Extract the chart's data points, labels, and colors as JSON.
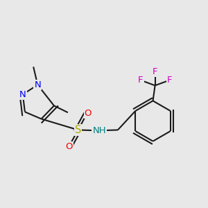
{
  "bg_color": "#e8e8e8",
  "bond_color": "#1a1a1a",
  "bond_width": 1.5,
  "atom_colors": {
    "N": "#0000ee",
    "O": "#ee0000",
    "S": "#aaaa00",
    "F": "#cc00cc",
    "NH": "#008080",
    "C": "#1a1a1a"
  },
  "font_size": 9.5,
  "figsize": [
    3.0,
    3.0
  ],
  "dpi": 100
}
